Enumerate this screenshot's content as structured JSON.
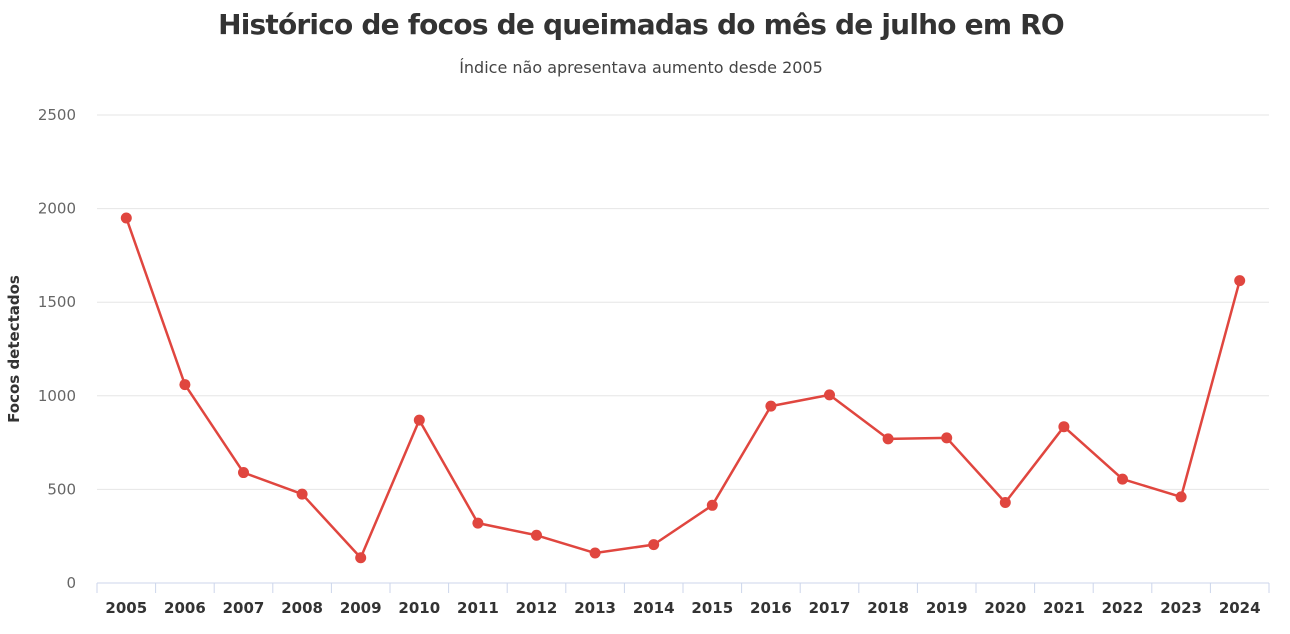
{
  "chart_data": {
    "type": "line",
    "title": "Histórico de focos de queimadas do mês de julho em RO",
    "subtitle": "Índice não apresentava aumento desde 2005",
    "xlabel": "",
    "ylabel": "Focos detectados",
    "categories": [
      "2005",
      "2006",
      "2007",
      "2008",
      "2009",
      "2010",
      "2011",
      "2012",
      "2013",
      "2014",
      "2015",
      "2016",
      "2017",
      "2018",
      "2019",
      "2020",
      "2021",
      "2022",
      "2023",
      "2024"
    ],
    "series": [
      {
        "values": [
          1950,
          1060,
          590,
          475,
          135,
          870,
          320,
          255,
          160,
          205,
          415,
          945,
          1005,
          770,
          775,
          430,
          835,
          555,
          460,
          1615
        ],
        "color": "#e0463f"
      }
    ],
    "ylim": [
      0,
      2500
    ],
    "yticks": [
      0,
      500,
      1000,
      1500,
      2000,
      2500
    ],
    "grid": true,
    "legend": "none"
  }
}
